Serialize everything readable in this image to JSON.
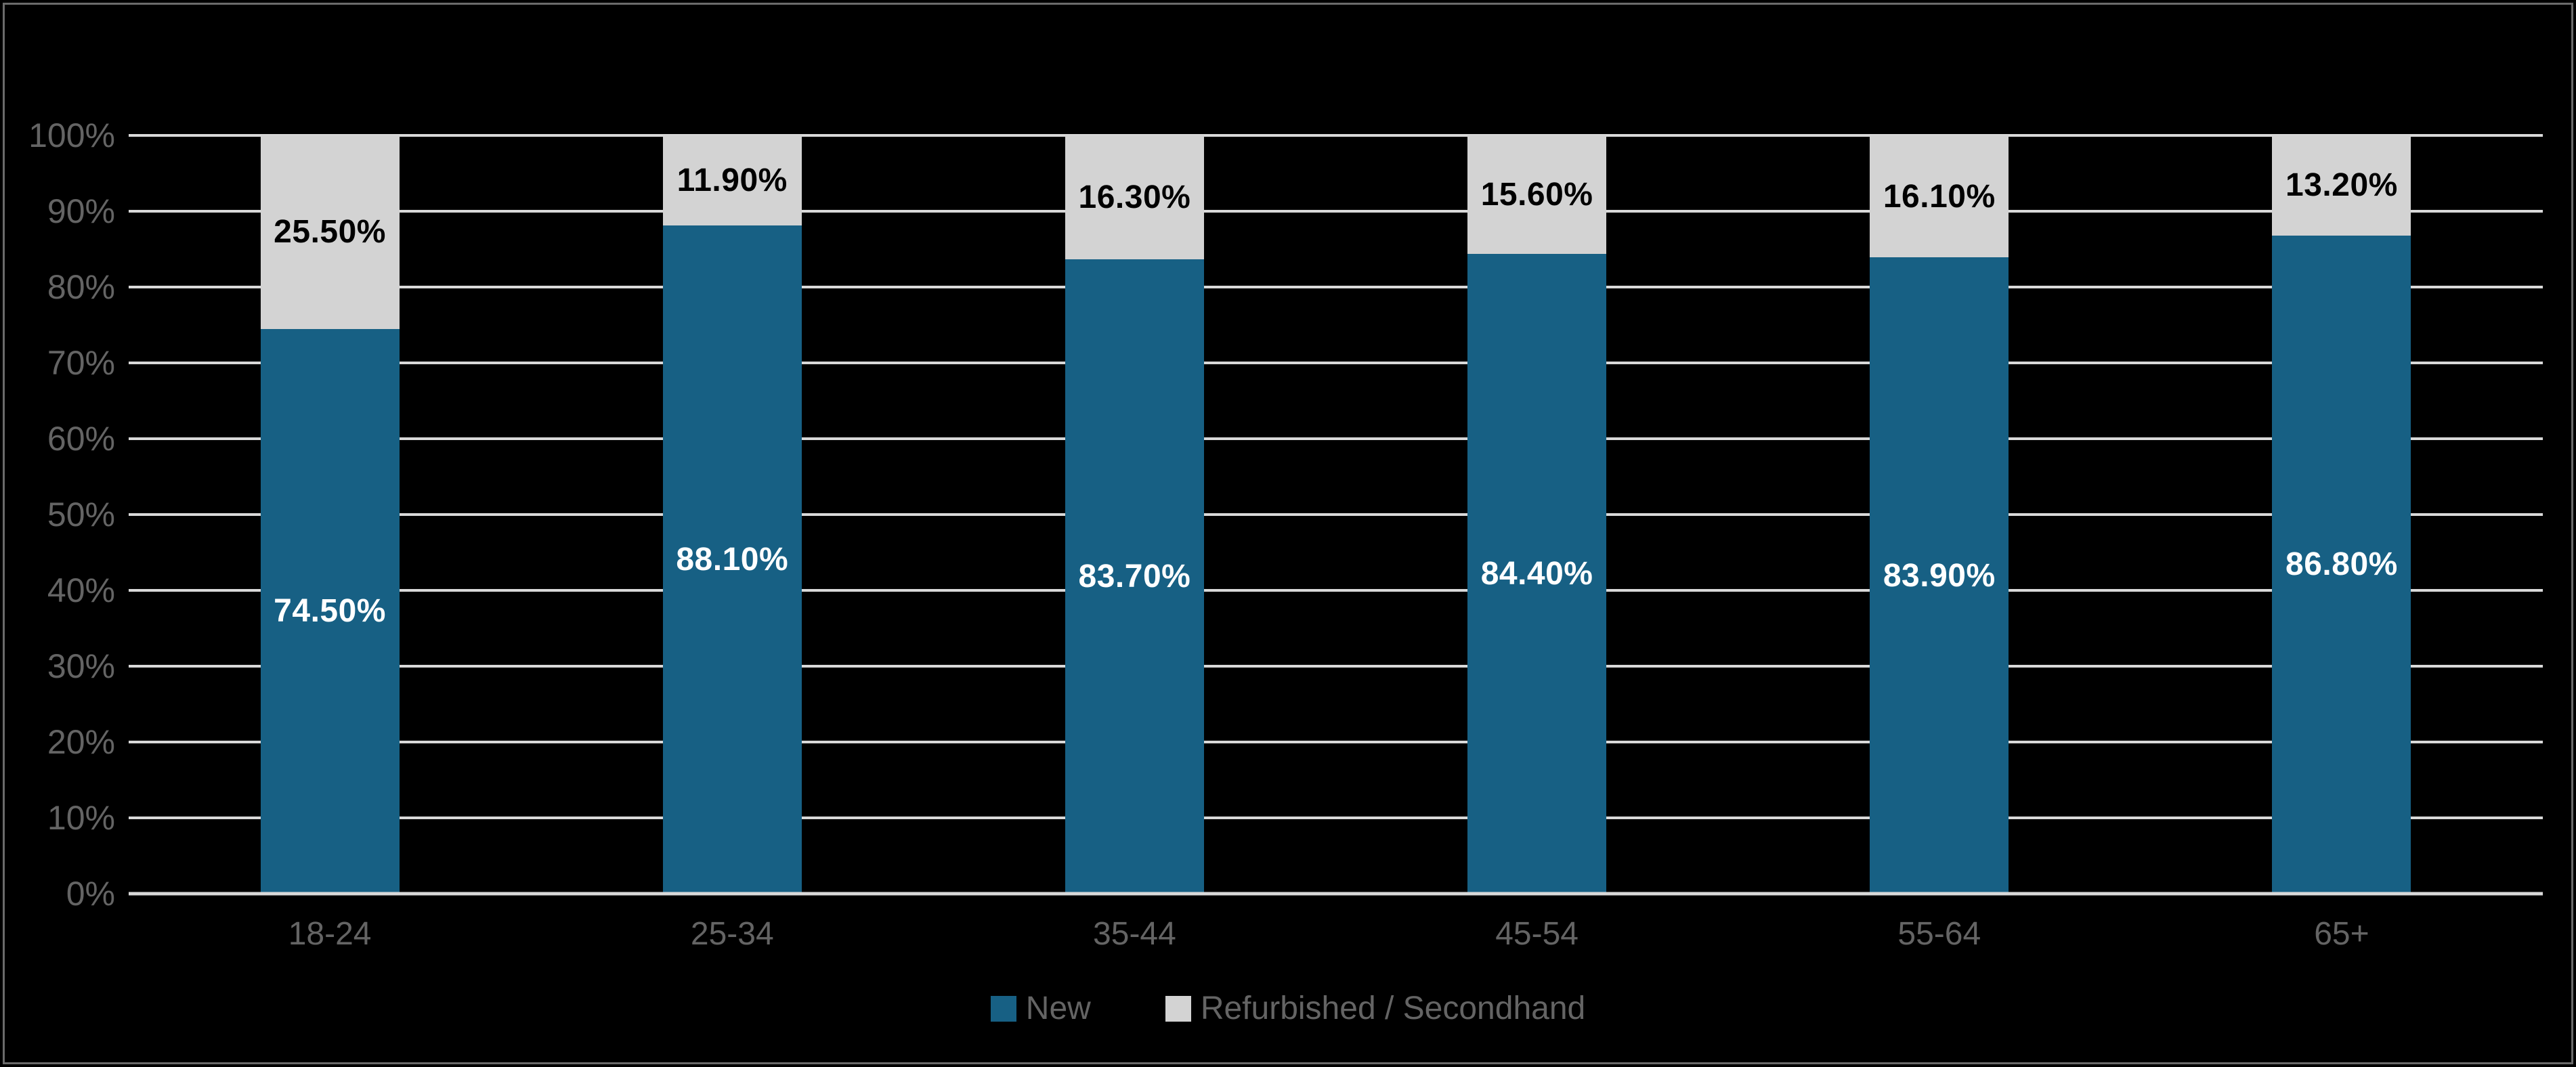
{
  "chart_data": {
    "type": "bar",
    "stacked": true,
    "title": "",
    "categories": [
      "18-24",
      "25-34",
      "35-44",
      "45-54",
      "55-64",
      "65+"
    ],
    "series": [
      {
        "name": "New",
        "color": "#176084",
        "label_color": "#FFFFFF",
        "values": [
          74.5,
          88.1,
          83.7,
          84.4,
          83.9,
          86.8
        ],
        "labels": [
          "74.50%",
          "88.10%",
          "83.70%",
          "84.40%",
          "83.90%",
          "86.80%"
        ]
      },
      {
        "name": "Refurbished / Secondhand",
        "color": "#D3D3D3",
        "label_color": "#000000",
        "values": [
          25.5,
          11.9,
          16.3,
          15.6,
          16.1,
          13.2
        ],
        "labels": [
          "25.50%",
          "11.90%",
          "16.30%",
          "15.60%",
          "16.10%",
          "13.20%"
        ]
      }
    ],
    "y_axis": {
      "min": 0,
      "max": 100,
      "tick_step": 10,
      "tick_labels_top_to_bottom": [
        "100%",
        "90%",
        "80%",
        "70%",
        "60%",
        "50%",
        "40%",
        "30%",
        "20%",
        "10%",
        "0%"
      ]
    },
    "grid": true,
    "legend_position": "bottom",
    "colors": {
      "background": "#000000",
      "border": "#6B6B6B",
      "gridline": "#D9D9D9",
      "axis_line": "#D9D9D9",
      "tick_text": "#646464"
    }
  }
}
